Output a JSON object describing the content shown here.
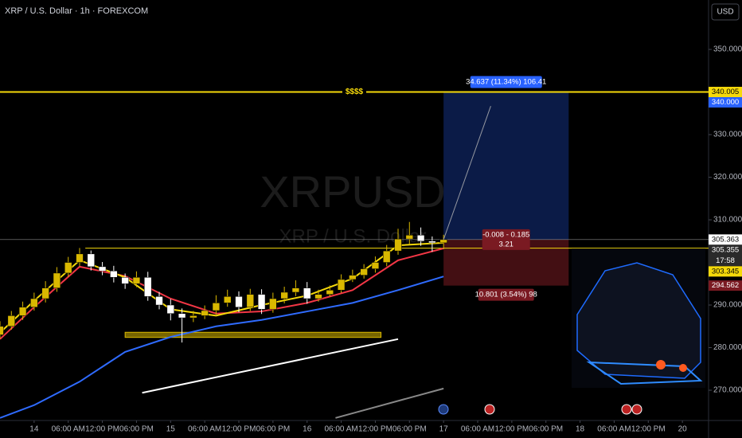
{
  "chart_data": {
    "type": "candlestick",
    "title": "XRP / U.S. Dollar · 1h · FOREXCOM",
    "watermark": [
      "XRPUSD",
      "XRP / U.S. Dollar"
    ],
    "currency": "USD",
    "up_color": "#d9b800",
    "down_color": "#ffffff",
    "x": [
      -6,
      -4,
      -2,
      0,
      2,
      4,
      6,
      8,
      10,
      12,
      14,
      16,
      18,
      20,
      22,
      24,
      26,
      28,
      30,
      32,
      34,
      36,
      38,
      40,
      42,
      44,
      46,
      48,
      50,
      52,
      54,
      56,
      58,
      60,
      62,
      64,
      66,
      68,
      70,
      72
    ],
    "open": [
      283,
      285,
      287.5,
      289.5,
      291.5,
      294,
      297.5,
      300,
      302,
      299,
      298,
      296.5,
      295,
      296.5,
      292,
      290,
      288,
      287,
      287.5,
      288.7,
      290.5,
      292,
      289.5,
      292.5,
      289,
      291.5,
      293,
      294,
      291.5,
      292.5,
      293.5,
      296,
      297,
      298.5,
      300,
      302.7,
      305.5,
      306.4,
      305,
      304.6
    ],
    "high": [
      286.2,
      288.6,
      290.8,
      292.9,
      295.6,
      298.9,
      301.3,
      303.4,
      302.8,
      300.1,
      299.2,
      297.4,
      297.9,
      297.8,
      293.1,
      291.4,
      289.2,
      288.6,
      289.9,
      292.3,
      293.6,
      293.2,
      293.8,
      293.7,
      292.9,
      294.3,
      295.8,
      295.4,
      293.6,
      294.6,
      297.2,
      298.3,
      299.6,
      301.4,
      304.1,
      307.9,
      309.5,
      308.2,
      306.1,
      306.5
    ],
    "low": [
      282.1,
      284.2,
      286.5,
      288.7,
      290.6,
      293.1,
      296.6,
      299.1,
      298.1,
      297.0,
      295.3,
      293.8,
      294.2,
      291.0,
      289.0,
      286.4,
      281.2,
      286.0,
      286.7,
      287.8,
      289.6,
      288.3,
      288.6,
      287.9,
      288.2,
      290.4,
      292.1,
      290.3,
      290.8,
      292.0,
      292.9,
      295.4,
      296.2,
      297.6,
      299.1,
      301.8,
      304.2,
      303.9,
      302.5,
      303.1
    ],
    "close": [
      285,
      287.5,
      289.5,
      291.5,
      294,
      297.5,
      300,
      302,
      299,
      298,
      296.5,
      295,
      296.5,
      292,
      290,
      288,
      287,
      287.5,
      288.7,
      290.5,
      292,
      289.5,
      292.5,
      289,
      291.5,
      293,
      294,
      291.5,
      292.5,
      293.5,
      296,
      297,
      298.5,
      300,
      302.7,
      305.5,
      306.4,
      305,
      304.6,
      305.355
    ],
    "lines": [
      {
        "color": "#2f6bff",
        "x": [
          -6,
          0,
          8,
          16,
          24,
          32,
          40,
          48,
          56,
          64,
          72
        ],
        "values": [
          263.5,
          266.5,
          272,
          279,
          282.5,
          285,
          286.5,
          288.5,
          290.5,
          293.5,
          296.7
        ]
      },
      {
        "color": "#f23645",
        "x": [
          -6,
          0,
          8,
          16,
          24,
          32,
          40,
          48,
          56,
          64,
          72
        ],
        "values": [
          282,
          289.5,
          299,
          296.8,
          291.5,
          288,
          288.5,
          290.5,
          293.5,
          300.5,
          303.3
        ]
      },
      {
        "color": "#f5d90a",
        "x": [
          -6,
          0,
          8,
          16,
          24,
          32,
          40,
          48,
          56,
          64,
          72
        ],
        "values": [
          283.5,
          291,
          300.5,
          296.5,
          289,
          287.5,
          290,
          292.2,
          296.2,
          304,
          304.6
        ]
      }
    ],
    "xlim": [
      -6,
      118.6
    ],
    "xticks": [
      {
        "value": 0,
        "label": "14"
      },
      {
        "value": 6,
        "label": "06:00 AM"
      },
      {
        "value": 12,
        "label": "12:00 PM"
      },
      {
        "value": 18,
        "label": "06:00 PM"
      },
      {
        "value": 24,
        "label": "15"
      },
      {
        "value": 30,
        "label": "06:00 AM"
      },
      {
        "value": 36,
        "label": "12:00 PM"
      },
      {
        "value": 42,
        "label": "06:00 PM"
      },
      {
        "value": 48,
        "label": "16"
      },
      {
        "value": 54,
        "label": "06:00 AM"
      },
      {
        "value": 60,
        "label": "12:00 PM"
      },
      {
        "value": 66,
        "label": "06:00 PM"
      },
      {
        "value": 72,
        "label": "17"
      },
      {
        "value": 78,
        "label": "06:00 AM"
      },
      {
        "value": 84,
        "label": "12:00 PM"
      },
      {
        "value": 90,
        "label": "06:00 PM"
      },
      {
        "value": 96,
        "label": "18"
      },
      {
        "value": 102,
        "label": "06:00 AM"
      },
      {
        "value": 108,
        "label": "12:00 PM"
      },
      {
        "value": 114,
        "label": "20"
      }
    ],
    "ylim": [
      262.9,
      361.6
    ],
    "yticks": [
      {
        "value": 270,
        "label": "270.000"
      },
      {
        "value": 280,
        "label": "280.000"
      },
      {
        "value": 290,
        "label": "290.000"
      },
      {
        "value": 310,
        "label": "310.000"
      },
      {
        "value": 320,
        "label": "320.000"
      },
      {
        "value": 330,
        "label": "330.000"
      },
      {
        "value": 350,
        "label": "350.000"
      }
    ],
    "level": {
      "value": 340,
      "label": "$$$$",
      "color": "#f5d90a"
    },
    "level_line": {
      "value": 303.345,
      "x": 9,
      "color": "#f5d90a"
    },
    "price_line": {
      "value": 305.363,
      "color": "#888888"
    },
    "price_labels": [
      {
        "value": 340.005,
        "label": "340.005",
        "bg": "#f5d90a",
        "fg": "#000000"
      },
      {
        "value": 340,
        "label": "340.000",
        "bg": "#2962ff",
        "fg": "#ffffff"
      },
      {
        "value": 305.363,
        "label": "305.363",
        "bg": "#ffffff",
        "fg": "#000000"
      },
      {
        "value": 305.355,
        "label": "305.355",
        "countdown": "17:58",
        "bg": "#2a2a2a",
        "fg": "#ffffff"
      },
      {
        "value": 303.345,
        "label": "303.345",
        "bg": "#f5d90a",
        "fg": "#000000"
      },
      {
        "value": 294.562,
        "label": "294.562",
        "bg": "#7a1a22",
        "fg": "#ffffff"
      }
    ],
    "position": {
      "x": [
        72,
        94
      ],
      "entry": 305.363,
      "target": 340,
      "stop": 294.562,
      "target_label": "34.637 (11.34%) 106.41",
      "center_label": [
        "-0.008 - 0.185",
        "3.21"
      ],
      "stop_label": "10.801 (3.54%) 98"
    },
    "zone": {
      "x": [
        16,
        61
      ],
      "y": [
        282.4,
        283.6
      ],
      "color": "#d9b800"
    },
    "trendlines": [
      {
        "color": "#ffffff",
        "x": [
          19,
          64
        ],
        "y": [
          269.4,
          282
        ]
      },
      {
        "color": "#888888",
        "x": [
          53,
          72
        ],
        "y": [
          263.5,
          270.4
        ]
      }
    ],
    "arrow": {
      "x": [
        72,
        80.3
      ],
      "y": [
        305.363,
        336.7
      ]
    }
  }
}
